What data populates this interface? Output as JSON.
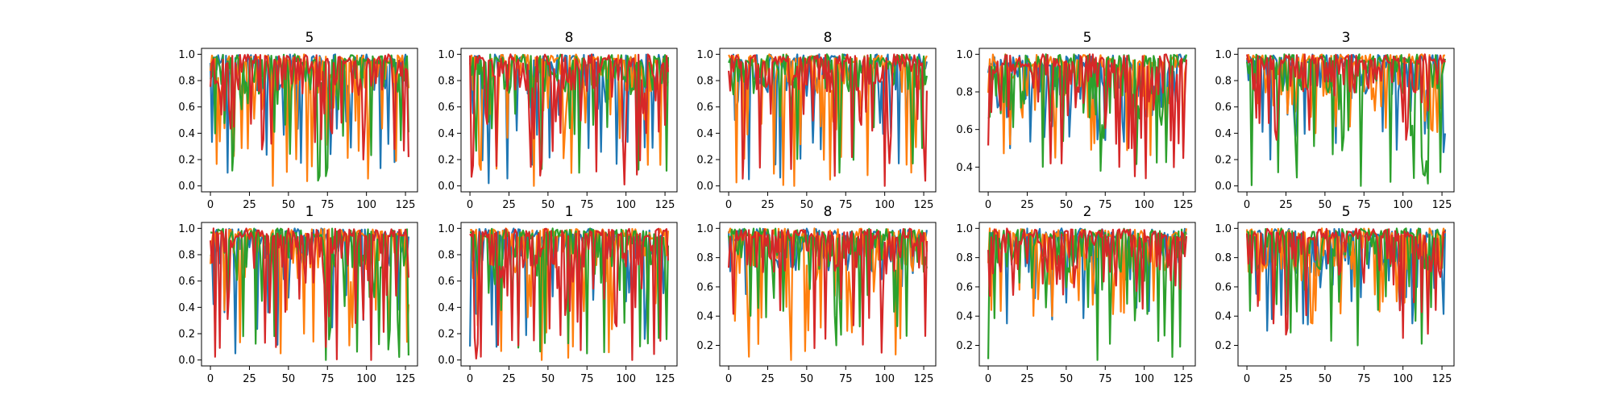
{
  "figure": {
    "background": "#ffffff",
    "series_colors": [
      "#1f77b4",
      "#ff7f0e",
      "#2ca02c",
      "#d62728"
    ],
    "note": ""
  },
  "chart_data": [
    {
      "type": "line",
      "title": "5",
      "xlim": [
        0,
        127
      ],
      "ylim": [
        0.0,
        1.0
      ],
      "xticks": [
        0,
        25,
        50,
        75,
        100,
        125
      ],
      "yticks": [
        0.0,
        0.2,
        0.4,
        0.6,
        0.8,
        1.0
      ],
      "x_range": [
        0,
        127
      ],
      "series_min": [
        0.1,
        0.0,
        0.04,
        0.2
      ],
      "grid": false
    },
    {
      "type": "line",
      "title": "8",
      "xlim": [
        0,
        127
      ],
      "ylim": [
        0.0,
        1.0
      ],
      "xticks": [
        0,
        25,
        50,
        75,
        100,
        125
      ],
      "yticks": [
        0.0,
        0.2,
        0.4,
        0.6,
        0.8,
        1.0
      ],
      "x_range": [
        0,
        127
      ],
      "series_min": [
        0.02,
        0.0,
        0.1,
        0.01
      ],
      "grid": false
    },
    {
      "type": "line",
      "title": "8",
      "xlim": [
        0,
        127
      ],
      "ylim": [
        0.0,
        1.0
      ],
      "xticks": [
        0,
        25,
        50,
        75,
        100,
        125
      ],
      "yticks": [
        0.0,
        0.2,
        0.4,
        0.6,
        0.8,
        1.0
      ],
      "x_range": [
        0,
        127
      ],
      "series_min": [
        0.05,
        0.0,
        0.1,
        0.0
      ],
      "grid": false
    },
    {
      "type": "line",
      "title": "5",
      "xlim": [
        0,
        127
      ],
      "ylim": [
        0.3,
        1.0
      ],
      "xticks": [
        0,
        25,
        50,
        75,
        100,
        125
      ],
      "yticks": [
        0.4,
        0.6,
        0.8,
        1.0
      ],
      "x_range": [
        0,
        127
      ],
      "series_min": [
        0.5,
        0.45,
        0.38,
        0.34
      ],
      "grid": false
    },
    {
      "type": "line",
      "title": "3",
      "xlim": [
        0,
        127
      ],
      "ylim": [
        0.0,
        1.0
      ],
      "xticks": [
        0,
        25,
        50,
        75,
        100,
        125
      ],
      "yticks": [
        0.0,
        0.2,
        0.4,
        0.6,
        0.8,
        1.0
      ],
      "x_range": [
        0,
        127
      ],
      "series_min": [
        0.2,
        0.4,
        0.0,
        0.35
      ],
      "grid": false
    },
    {
      "type": "line",
      "title": "1",
      "xlim": [
        0,
        127
      ],
      "ylim": [
        0.0,
        1.0
      ],
      "xticks": [
        0,
        25,
        50,
        75,
        100,
        125
      ],
      "yticks": [
        0.0,
        0.2,
        0.4,
        0.6,
        0.8,
        1.0
      ],
      "x_range": [
        0,
        127
      ],
      "series_min": [
        0.05,
        0.05,
        0.0,
        0.0
      ],
      "grid": false
    },
    {
      "type": "line",
      "title": "1",
      "xlim": [
        0,
        127
      ],
      "ylim": [
        0.0,
        1.0
      ],
      "xticks": [
        0,
        25,
        50,
        75,
        100,
        125
      ],
      "yticks": [
        0.0,
        0.2,
        0.4,
        0.6,
        0.8,
        1.0
      ],
      "x_range": [
        0,
        127
      ],
      "series_min": [
        0.1,
        0.0,
        0.05,
        0.0
      ],
      "grid": false
    },
    {
      "type": "line",
      "title": "8",
      "xlim": [
        0,
        127
      ],
      "ylim": [
        0.1,
        1.0
      ],
      "xticks": [
        0,
        25,
        50,
        75,
        100,
        125
      ],
      "yticks": [
        0.2,
        0.4,
        0.6,
        0.8,
        1.0
      ],
      "x_range": [
        0,
        127
      ],
      "series_min": [
        0.55,
        0.1,
        0.2,
        0.15
      ],
      "grid": false
    },
    {
      "type": "line",
      "title": "2",
      "xlim": [
        0,
        127
      ],
      "ylim": [
        0.1,
        1.0
      ],
      "xticks": [
        0,
        25,
        50,
        75,
        100,
        125
      ],
      "yticks": [
        0.2,
        0.4,
        0.6,
        0.8,
        1.0
      ],
      "x_range": [
        0,
        127
      ],
      "series_min": [
        0.35,
        0.4,
        0.1,
        0.45
      ],
      "grid": false
    },
    {
      "type": "line",
      "title": "5",
      "xlim": [
        0,
        127
      ],
      "ylim": [
        0.1,
        1.0
      ],
      "xticks": [
        0,
        25,
        50,
        75,
        100,
        125
      ],
      "yticks": [
        0.2,
        0.4,
        0.6,
        0.8,
        1.0
      ],
      "x_range": [
        0,
        127
      ],
      "series_min": [
        0.3,
        0.35,
        0.2,
        0.25
      ],
      "grid": false
    }
  ]
}
